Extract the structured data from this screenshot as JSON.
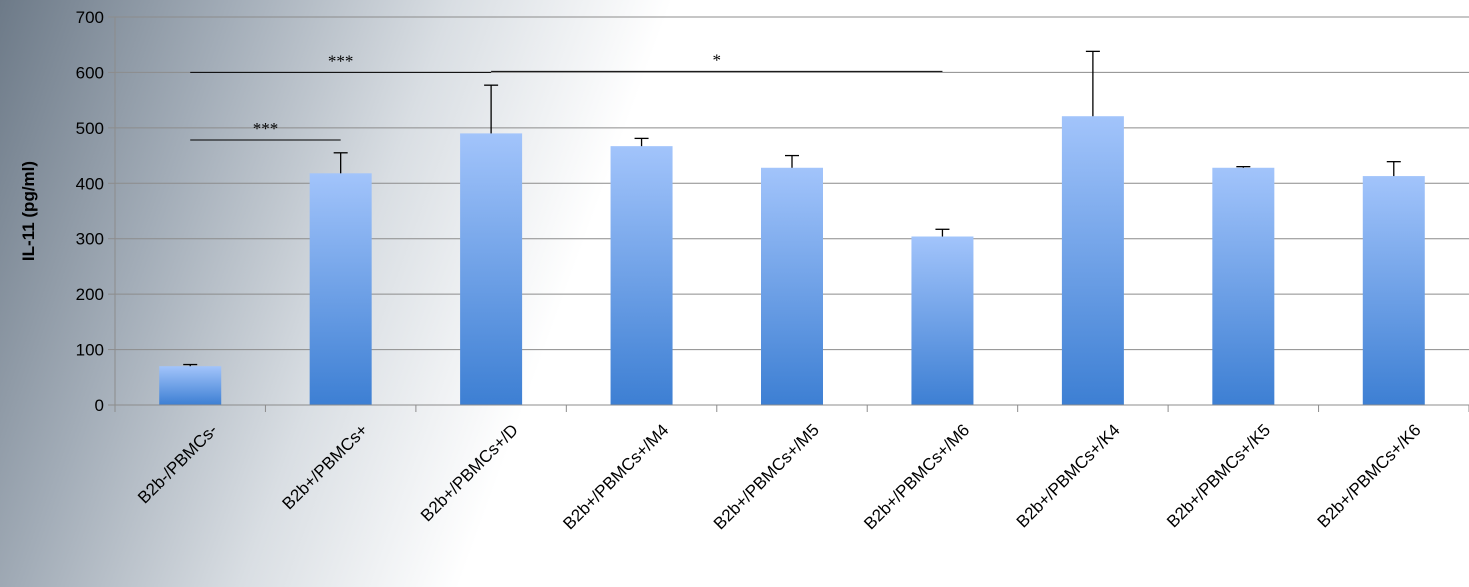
{
  "chart_data": {
    "type": "bar",
    "ylabel": "IL-11 (pg/ml)",
    "xlabel": "",
    "ylim": [
      0,
      700
    ],
    "yticks": [
      0,
      100,
      200,
      300,
      400,
      500,
      600,
      700
    ],
    "grid": true,
    "categories": [
      "B2b-/PBMCs-",
      "B2b+/PBMCs+",
      "B2b+/PBMCs+/D",
      "B2b+/PBMCs+/M4",
      "B2b+/PBMCs+/M5",
      "B2b+/PBMCs+/M6",
      "B2b+/PBMCs+/K4",
      "B2b+/PBMCs+/K5",
      "B2b+/PBMCs+/K6"
    ],
    "values": [
      70,
      418,
      490,
      467,
      428,
      304,
      521,
      428,
      413
    ],
    "error_plus": [
      3,
      37,
      87,
      14,
      22,
      13,
      117,
      2,
      26
    ],
    "bar_color_top": "#a2c4fb",
    "bar_color_bottom": "#3d7fd3",
    "significance": [
      {
        "from": 0,
        "to": 2,
        "y": 600,
        "label": "***"
      },
      {
        "from": 0,
        "to": 1,
        "y": 478,
        "label": "***"
      },
      {
        "from": 2,
        "to": 5,
        "y": 602,
        "label": "*"
      }
    ]
  }
}
